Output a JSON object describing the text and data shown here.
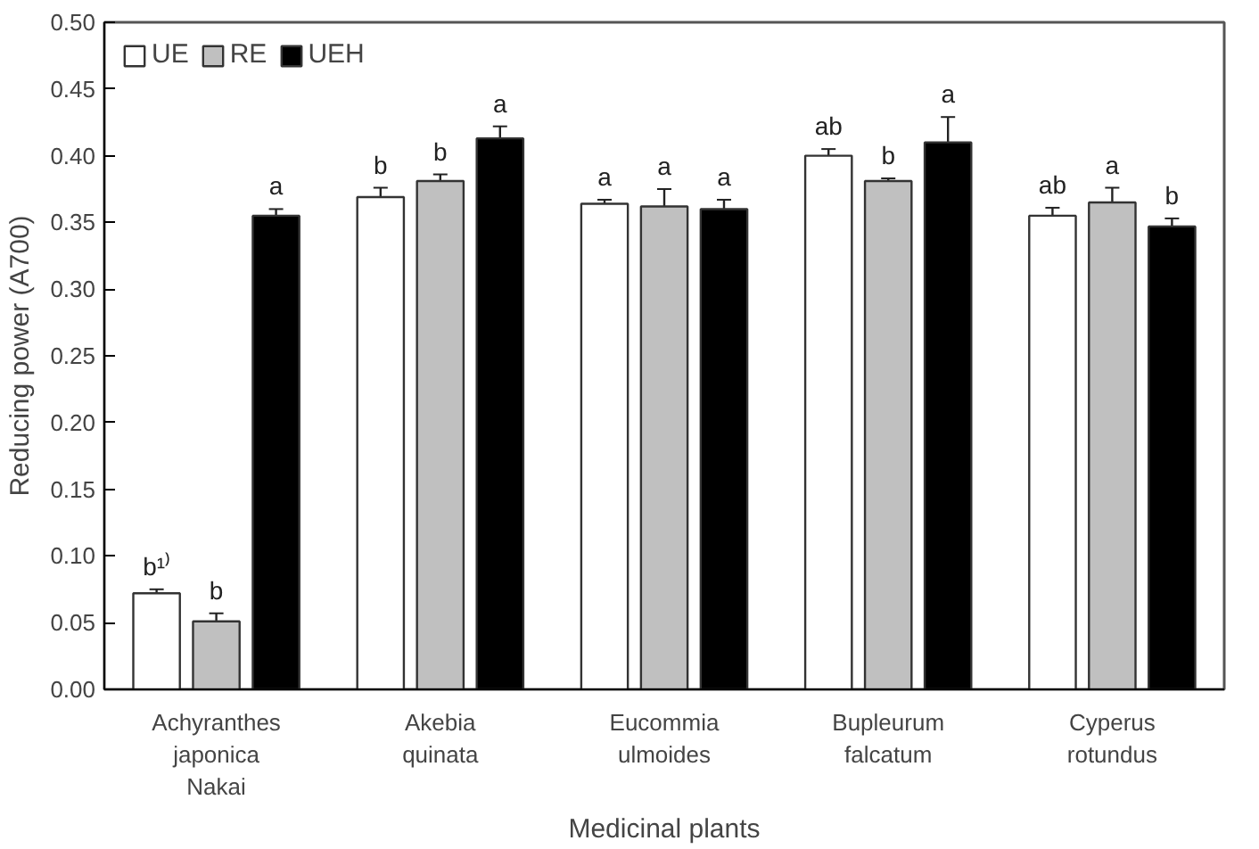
{
  "chart_data": {
    "type": "bar",
    "xlabel": "Medicinal plants",
    "ylabel": "Reducing power (A700)",
    "categories": [
      "Achyranthes\njaponica\nNakai",
      "Akebia\nquinata",
      "Eucommia\nulmoides",
      "Bupleurum\nfalcatum",
      "Cyperus\nrotundus"
    ],
    "series": [
      {
        "name": "UE",
        "color": "#ffffff",
        "values": [
          0.072,
          0.369,
          0.364,
          0.4,
          0.355
        ],
        "errors": [
          0.003,
          0.007,
          0.003,
          0.005,
          0.006
        ],
        "value_labels": [
          "b¹⁾",
          "b",
          "a",
          "ab",
          "ab"
        ]
      },
      {
        "name": "RE",
        "color": "#c0c0c0",
        "values": [
          0.051,
          0.381,
          0.362,
          0.381,
          0.365
        ],
        "errors": [
          0.006,
          0.005,
          0.013,
          0.002,
          0.011
        ],
        "value_labels": [
          "b",
          "b",
          "a",
          "b",
          "a"
        ]
      },
      {
        "name": "UEH",
        "color": "#000000",
        "values": [
          0.355,
          0.413,
          0.36,
          0.41,
          0.347
        ],
        "errors": [
          0.005,
          0.009,
          0.007,
          0.019,
          0.006
        ],
        "value_labels": [
          "a",
          "a",
          "a",
          "a",
          "b"
        ]
      }
    ],
    "ylim": [
      0,
      0.5
    ],
    "yticks": [
      {
        "value": 0,
        "label": "0.00"
      },
      0.05,
      {
        "value": 0.1,
        "label": "0.10"
      },
      0.15,
      {
        "value": 0.2,
        "label": "0.20"
      },
      0.25,
      {
        "value": 0.3,
        "label": "0.30"
      },
      0.35,
      {
        "value": 0.4,
        "label": "0.40"
      },
      0.45,
      {
        "value": 0.5,
        "label": "0.50"
      }
    ],
    "grid": false,
    "legend": "top left"
  }
}
